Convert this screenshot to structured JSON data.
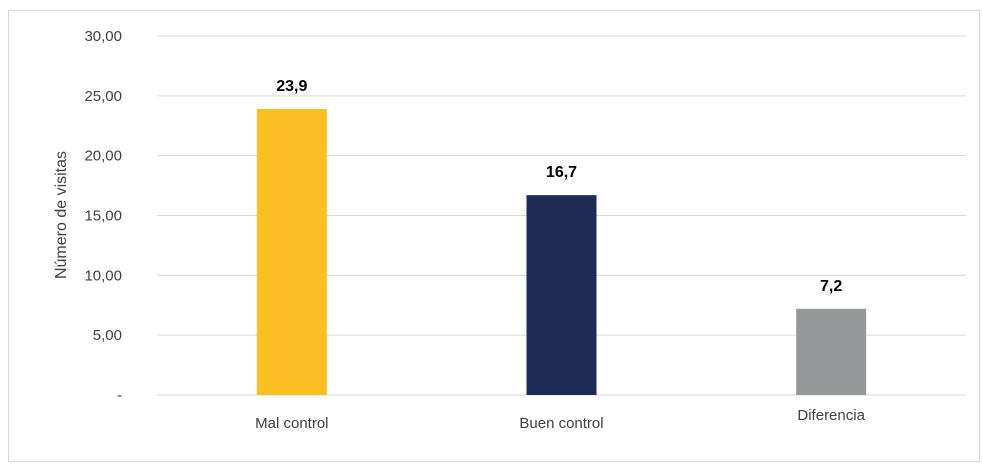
{
  "chart_data": {
    "type": "bar",
    "categories": [
      "Mal control",
      "Buen control",
      "Diferencia"
    ],
    "values": [
      23.9,
      16.7,
      7.2
    ],
    "data_labels": [
      "23,9",
      "16,7",
      "7,2"
    ],
    "colors": [
      "#fbbf24",
      "#1d2b55",
      "#959898"
    ],
    "ylabel": "Número de visitas",
    "xlabel": "",
    "ylim": [
      0,
      30
    ],
    "yticks": [
      0,
      5,
      10,
      15,
      20,
      25,
      30
    ],
    "ytick_labels": [
      "-",
      "5,00",
      "10,00",
      "15,00",
      "20,00",
      "25,00",
      "30,00"
    ],
    "grid": true,
    "gridline_color": "#d9d9d9"
  }
}
